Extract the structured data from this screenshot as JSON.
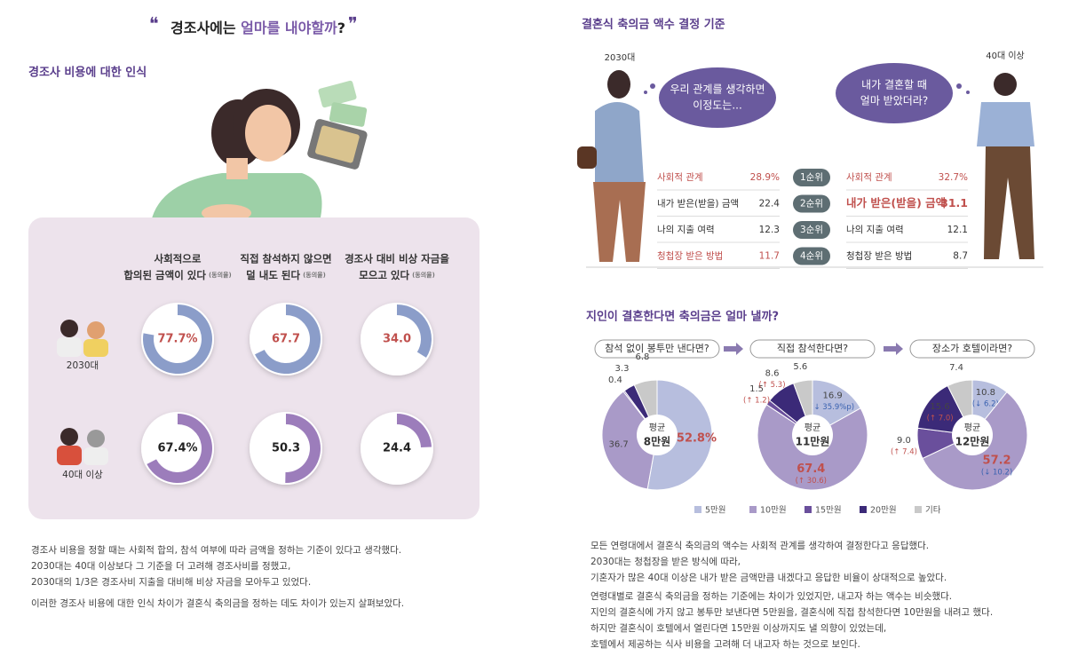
{
  "left": {
    "title": [
      "경조사에는 ",
      "얼마를 내야할까",
      "?"
    ],
    "section": "경조사 비용에 대한 인식",
    "paragraphs": [
      "경조사 비용을 정할 때는 사회적 합의, 참석 여부에 따라 금액을 정하는 기준이 있다고 생각했다.",
      "2030대는 40대 이상보다 그 기준을 더 고려해 경조사비를 정했고,",
      "2030대의 1/3은 경조사비 지출을 대비해 비상 자금을 모아두고 있었다.",
      "이러한 경조사 비용에 대한 인식 차이가 결혼식 축의금을 정하는 데도 차이가 있는지 살펴보았다."
    ]
  },
  "right": {
    "section": "결혼식 축의금 액수 결정 기준",
    "groups": [
      "2030대",
      "40대 이상"
    ],
    "bubbles": [
      [
        "우리 관계를 생각하면",
        "이정도는..."
      ],
      [
        "내가 결혼할 때",
        "얼마 받았더라?"
      ]
    ],
    "ranks": [
      "1순위",
      "2순위",
      "3순위",
      "4순위"
    ],
    "table": [
      [
        {
          "label": "사회적 관계",
          "value": "28.9%",
          "color": "#c0504d"
        },
        {
          "label": "내가 받은(받을) 금액",
          "value": "22.4",
          "color": "#333333"
        },
        {
          "label": "나의 지출 여력",
          "value": "12.3",
          "color": "#333333"
        },
        {
          "label": "청첩장 받은 방법",
          "value": "11.7",
          "color": "#c0504d"
        }
      ],
      [
        {
          "label": "사회적 관계",
          "value": "32.7%",
          "color": "#c0504d"
        },
        {
          "label": "내가 받은(받을) 금액",
          "value": "31.1",
          "color": "#c0504d"
        },
        {
          "label": "나의 지출 여력",
          "value": "12.1",
          "color": "#333333"
        },
        {
          "label": "청첩장 받은 방법",
          "value": "8.7",
          "color": "#333333"
        }
      ]
    ],
    "section2": "지인이 결혼한다면 축의금은 얼마 낼까?",
    "paragraphs": [
      "모든 연령대에서 결혼식 축의금의 액수는 사회적 관계를 생각하여 결정한다고 응답했다.",
      "2030대는 청첩장을 받은 방식에 따라,",
      "기혼자가 많은 40대 이상은 내가 받은 금액만큼 내겠다고 응답한 비율이 상대적으로 높았다.",
      "연령대별로 결혼식 축의금을 정하는 기준에는 차이가 있었지만, 내고자 하는 액수는 비슷했다.",
      "지인의 결혼식에 가지 않고 봉투만 보낸다면 5만원을, 결혼식에 직접 참석한다면 10만원을 내려고 했다.",
      "하지만 결혼식이 호텔에서 열린다면 15만원 이상까지도 낼 의향이 있었는데,",
      "호텔에서 제공하는 식사 비용을 고려해 더 내고자 하는 것으로 보인다."
    ]
  },
  "chart_data": [
    {
      "type": "donut",
      "categories": [
        [
          "사회적으로",
          "합의된 금액이 있다"
        ],
        [
          "직접 참석하지 않으면",
          "덜 내도 된다"
        ],
        [
          "경조사 대비 비상 자금을",
          "모으고 있다"
        ]
      ],
      "category_note": "(동의율)",
      "ylim": [
        0,
        100
      ],
      "series": [
        {
          "name": "2030대",
          "color": "#8b9dc9",
          "label_color": "#c0504d",
          "values": [
            77.7,
            67.7,
            34.0
          ],
          "value_labels": [
            "77.7%",
            "67.7",
            "34.0"
          ]
        },
        {
          "name": "40대 이상",
          "color": "#9c7dbb",
          "label_color": "#222222",
          "values": [
            67.4,
            50.3,
            24.4
          ],
          "value_labels": [
            "67.4%",
            "50.3",
            "24.4"
          ]
        }
      ]
    },
    {
      "type": "pie",
      "title": "참석 없이 봉투만 낸다면?",
      "center_label": "평균",
      "center_value": "8만원",
      "categories": [
        "5만원",
        "10만원",
        "15만원",
        "20만원",
        "기타"
      ],
      "colors": [
        "#b7bede",
        "#a99ac8",
        "#6a4f9c",
        "#3b2a78",
        "#c9c9c9"
      ],
      "values": [
        52.8,
        36.7,
        0.4,
        3.3,
        6.8
      ],
      "value_labels": [
        "52.8%",
        "36.7",
        "0.4",
        "3.3",
        "6.8"
      ]
    },
    {
      "type": "pie",
      "title": "직접 참석한다면?",
      "center_label": "평균",
      "center_value": "11만원",
      "categories": [
        "5만원",
        "10만원",
        "15만원",
        "20만원",
        "기타"
      ],
      "colors": [
        "#b7bede",
        "#a99ac8",
        "#6a4f9c",
        "#3b2a78",
        "#c9c9c9"
      ],
      "values": [
        16.9,
        67.4,
        1.5,
        8.6,
        5.6
      ],
      "value_labels": [
        "16.9",
        "67.4",
        "1.5",
        "8.6",
        "5.6"
      ],
      "change_labels": [
        "(↓ 35.9%p)",
        "(↑ 30.6)",
        "(↑ 1.2)",
        "(↑ 5.3)",
        null
      ]
    },
    {
      "type": "pie",
      "title": "장소가 호텔이라면?",
      "center_label": "평균",
      "center_value": "12만원",
      "categories": [
        "5만원",
        "10만원",
        "15만원",
        "20만원",
        "기타"
      ],
      "colors": [
        "#b7bede",
        "#a99ac8",
        "#6a4f9c",
        "#3b2a78",
        "#c9c9c9"
      ],
      "values": [
        10.8,
        57.2,
        9.0,
        15.6,
        7.4
      ],
      "value_labels": [
        "10.8",
        "57.2",
        "9.0",
        "15.6",
        "7.4"
      ],
      "change_labels": [
        "(↓ 6.2)",
        "(↓ 10.2)",
        "(↑ 7.4)",
        "(↑ 7.0)",
        null
      ]
    }
  ]
}
